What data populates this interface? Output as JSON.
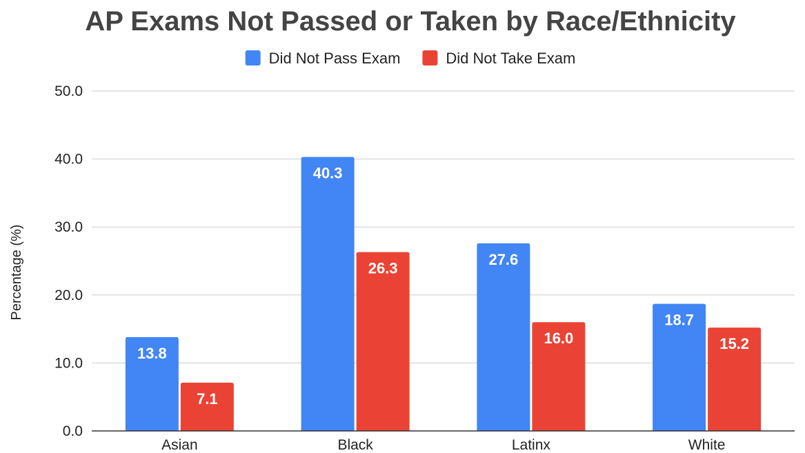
{
  "chart_data": {
    "type": "bar",
    "title": "AP Exams Not Passed or Taken by Race/Ethnicity",
    "xlabel": "",
    "ylabel": "Percentage (%)",
    "ylim": [
      0,
      50
    ],
    "yticks": [
      "0.0",
      "10.0",
      "20.0",
      "30.0",
      "40.0",
      "50.0"
    ],
    "ytick_values": [
      0,
      10,
      20,
      30,
      40,
      50
    ],
    "grid": true,
    "legend_position": "top",
    "categories": [
      "Asian",
      "Black",
      "Latinx",
      "White"
    ],
    "series": [
      {
        "name": "Did Not Pass Exam",
        "color": "#4285f4",
        "values": [
          13.8,
          40.3,
          27.6,
          18.7
        ],
        "labels": [
          "13.8",
          "40.3",
          "27.6",
          "18.7"
        ]
      },
      {
        "name": "Did Not Take Exam",
        "color": "#ea4335",
        "values": [
          7.1,
          26.3,
          16.0,
          15.2
        ],
        "labels": [
          "7.1",
          "26.3",
          "16.0",
          "15.2"
        ]
      }
    ]
  }
}
